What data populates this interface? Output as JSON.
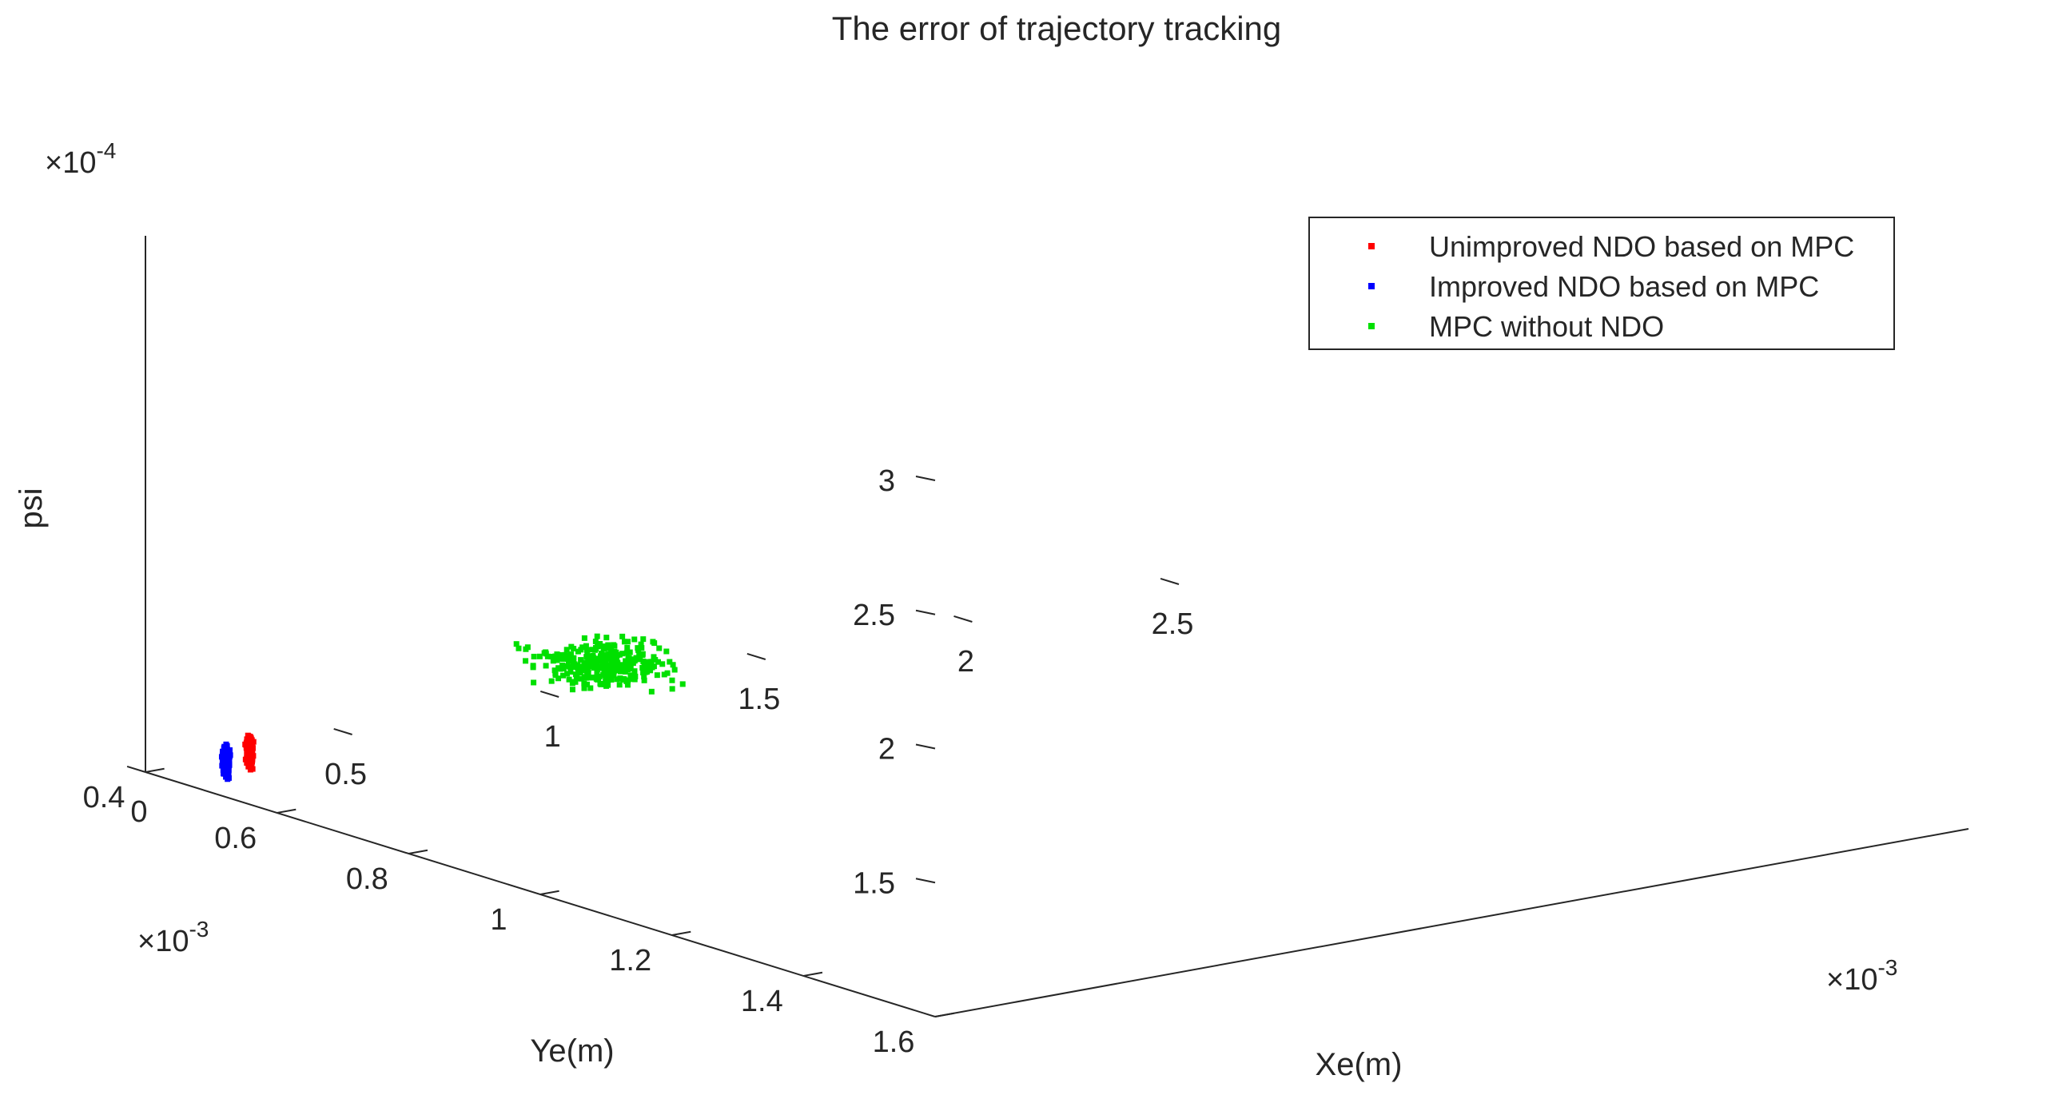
{
  "chart_data": {
    "type": "scatter",
    "projection": "3d",
    "title": "The error of trajectory tracking",
    "xlabel": "Xe(m)",
    "ylabel": "Ye(m)",
    "zlabel": "psi",
    "x_exponent": {
      "base": "×10",
      "power": "-3"
    },
    "y_exponent": {
      "base": "×10",
      "power": "-3"
    },
    "z_exponent": {
      "base": "×10",
      "power": "-4"
    },
    "xlim": [
      0,
      2.5
    ],
    "ylim": [
      0.4,
      1.6
    ],
    "zlim": [
      1,
      3
    ],
    "x_ticks": [
      "0",
      "0.5",
      "1",
      "1.5",
      "2",
      "2.5"
    ],
    "y_ticks": [
      "0.4",
      "0.6",
      "0.8",
      "1",
      "1.2",
      "1.4",
      "1.6"
    ],
    "z_ticks": [
      "1.5",
      "2",
      "2.5",
      "3"
    ],
    "x_tick_values": [
      0,
      0.5,
      1,
      1.5,
      2,
      2.5
    ],
    "y_tick_values": [
      0.4,
      0.6,
      0.8,
      1,
      1.2,
      1.4,
      1.6
    ],
    "z_tick_values": [
      1.5,
      2,
      2.5,
      3
    ],
    "grid": false,
    "legend_position": "top-right",
    "series": [
      {
        "name": "Unimproved NDO based on MPC",
        "color": "#ff0000",
        "marker": "dot",
        "x_center": 0.22,
        "y_center": 0.42,
        "z_center": 1.03,
        "z_spread": 0.05,
        "x_spread": 0.004,
        "count": 300
      },
      {
        "name": "Improved NDO based on MPC",
        "color": "#0000ff",
        "marker": "dot",
        "x_center": 0.1,
        "y_center": 0.46,
        "z_center": 1.06,
        "z_spread": 0.05,
        "x_spread": 0.004,
        "count": 300
      },
      {
        "name": "MPC without NDO",
        "color": "#00e000",
        "marker": "dot",
        "x_center": 0.44,
        "y_center": 0.82,
        "z_center": 1.6,
        "z_spread": 0.06,
        "x_spread": 0.12,
        "y_spread": 0.07,
        "count": 320
      }
    ]
  }
}
